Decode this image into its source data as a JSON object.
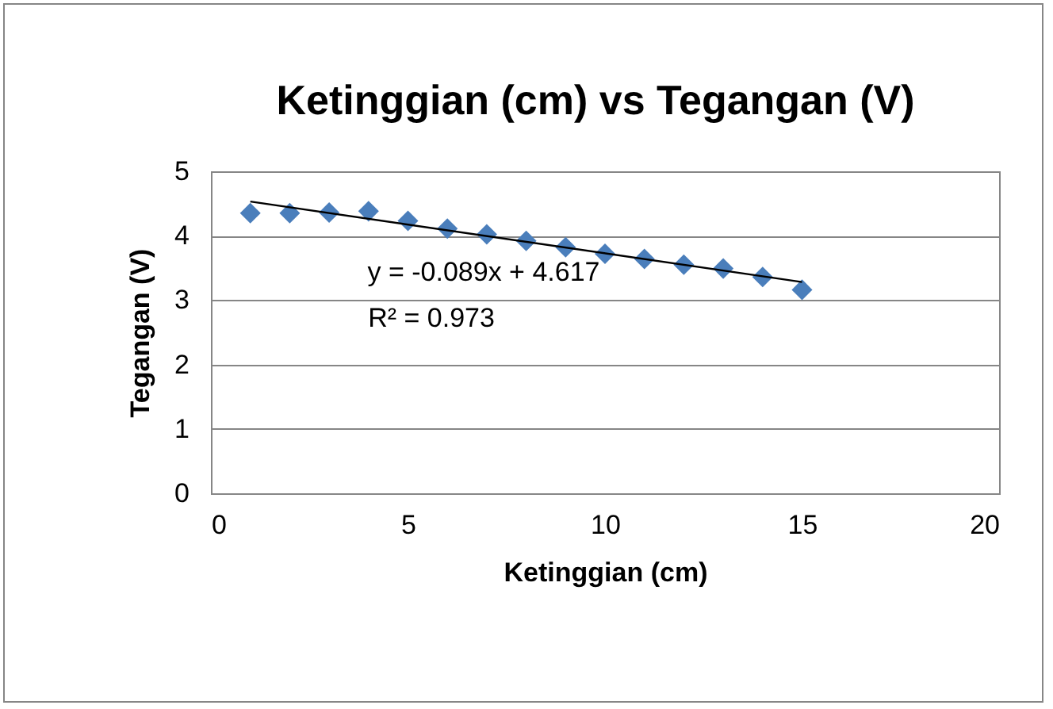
{
  "chart_data": {
    "type": "scatter",
    "title": "Ketinggian (cm) vs Tegangan (V)",
    "xlabel": "Ketinggian (cm)",
    "ylabel": "Tegangan (V)",
    "x": [
      1,
      2,
      3,
      4,
      5,
      6,
      7,
      8,
      9,
      10,
      11,
      12,
      13,
      14,
      15
    ],
    "series": [
      {
        "color": "#4a7ebb",
        "marker": "diamond",
        "values": [
          4.35,
          4.35,
          4.36,
          4.38,
          4.23,
          4.11,
          4.02,
          3.92,
          3.82,
          3.72,
          3.64,
          3.55,
          3.49,
          3.36,
          3.16
        ]
      },
      {
        "type": "line",
        "color": "#000000",
        "x": [
          1,
          15
        ],
        "values": [
          4.53,
          3.28
        ]
      }
    ],
    "annotations": [
      "y = -0.089x + 4.617",
      "R² = 0.973"
    ],
    "xlim": [
      0,
      20
    ],
    "xticks": [
      0,
      5,
      10,
      15,
      20
    ],
    "ylim": [
      0,
      5
    ],
    "yticks": [
      0,
      1,
      2,
      3,
      4,
      5
    ],
    "grid": "y"
  }
}
